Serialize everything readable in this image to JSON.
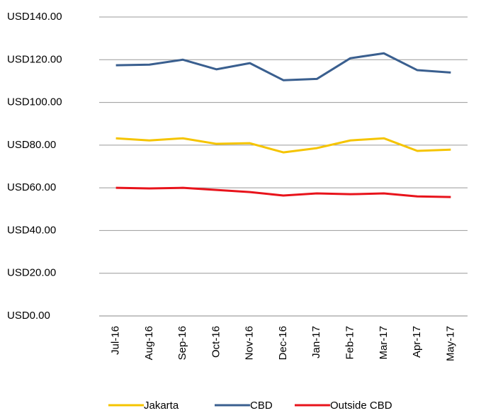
{
  "chart_data": {
    "type": "line",
    "categories": [
      "Jul-16",
      "Aug-16",
      "Sep-16",
      "Oct-16",
      "Nov-16",
      "Dec-16",
      "Jan-17",
      "Feb-17",
      "Mar-17",
      "Apr-17",
      "May-17"
    ],
    "series": [
      {
        "name": "Jakarta",
        "color": "#f5c400",
        "values": [
          83.2,
          82.2,
          83.2,
          80.6,
          80.9,
          76.6,
          78.6,
          82.2,
          83.2,
          77.3,
          77.9
        ]
      },
      {
        "name": "CBD",
        "color": "#3a5f8f",
        "values": [
          117.4,
          117.7,
          120,
          115.5,
          118.4,
          110.4,
          111,
          120.7,
          123,
          115.1,
          114
        ]
      },
      {
        "name": "Outside CBD",
        "color": "#e8131b",
        "values": [
          60,
          59.7,
          60,
          59,
          58,
          56.4,
          57.4,
          57,
          57.4,
          56,
          55.7
        ]
      }
    ],
    "ylim": [
      0,
      140
    ],
    "yticks": [
      {
        "value": 0,
        "label": "USD0.00"
      },
      {
        "value": 20,
        "label": "USD20.00"
      },
      {
        "value": 40,
        "label": "USD40.00"
      },
      {
        "value": 60,
        "label": "USD60.00"
      },
      {
        "value": 80,
        "label": "USD80.00"
      },
      {
        "value": 100,
        "label": "USD100.00"
      },
      {
        "value": 120,
        "label": "USD120.00"
      },
      {
        "value": 140,
        "label": "USD140.00"
      }
    ],
    "grid": true,
    "legend": "bottom"
  }
}
